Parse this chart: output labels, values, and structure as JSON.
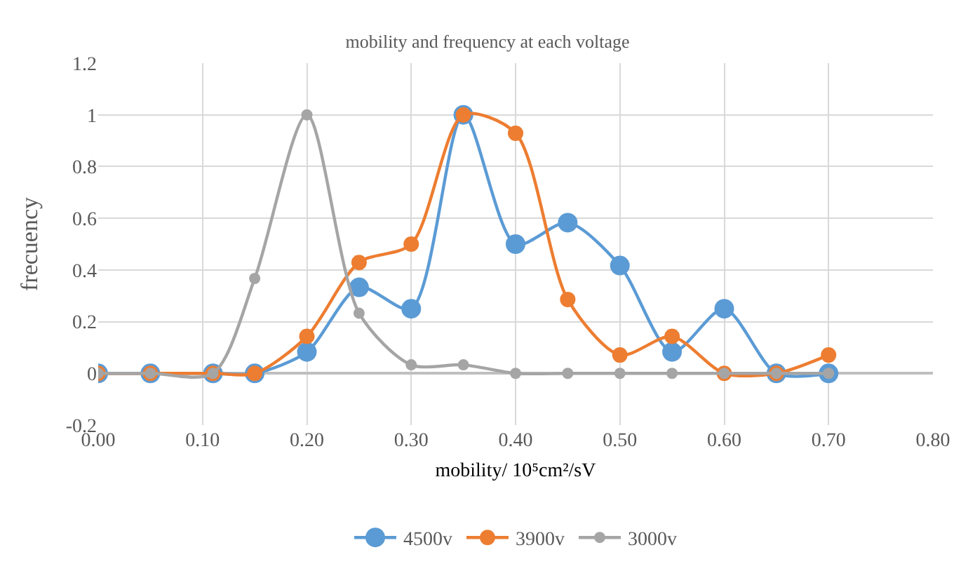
{
  "chart_data": {
    "type": "line",
    "title": "mobility and frequency at each voltage",
    "xlabel": "mobility/ 10⁵cm²/sV",
    "ylabel": "frecuency",
    "x": [
      0,
      0.05,
      0.11,
      0.15,
      0.2,
      0.25,
      0.3,
      0.35,
      0.4,
      0.45,
      0.5,
      0.55,
      0.6,
      0.65,
      0.7
    ],
    "series": [
      {
        "name": "4500v",
        "color": "#5b9bd5",
        "values": [
          0,
          0,
          0,
          0,
          0.083,
          0.333,
          0.25,
          1,
          0.5,
          0.583,
          0.417,
          0.083,
          0.25,
          0,
          0
        ]
      },
      {
        "name": "3900v",
        "color": "#ed7d31",
        "values": [
          0,
          0,
          0,
          0,
          0.143,
          0.429,
          0.5,
          1,
          0.929,
          0.286,
          0.071,
          0.143,
          0,
          0,
          0.071
        ]
      },
      {
        "name": "3000v",
        "color": "#a5a5a5",
        "values": [
          0,
          0,
          0,
          0.367,
          1,
          0.233,
          0.033,
          0.033,
          0,
          0,
          0,
          0,
          0,
          0,
          0
        ]
      }
    ],
    "xlim": [
      0,
      0.8
    ],
    "xticks": [
      {
        "value": 0,
        "label": "0.00"
      },
      {
        "value": 0.1,
        "label": "0.10"
      },
      {
        "value": 0.2,
        "label": "0.20"
      },
      {
        "value": 0.3,
        "label": "0.30"
      },
      {
        "value": 0.4,
        "label": "0.40"
      },
      {
        "value": 0.5,
        "label": "0.50"
      },
      {
        "value": 0.6,
        "label": "0.60"
      },
      {
        "value": 0.7,
        "label": "0.70"
      },
      {
        "value": 0.8,
        "label": "0.80"
      }
    ],
    "ylim": [
      -0.2,
      1.2
    ],
    "yticks": [
      -0.2,
      0,
      0.2,
      0.4,
      0.6,
      0.8,
      1,
      1.2
    ],
    "grid": true,
    "legend": "bottom",
    "marker": "circle",
    "line_style": "solid"
  }
}
